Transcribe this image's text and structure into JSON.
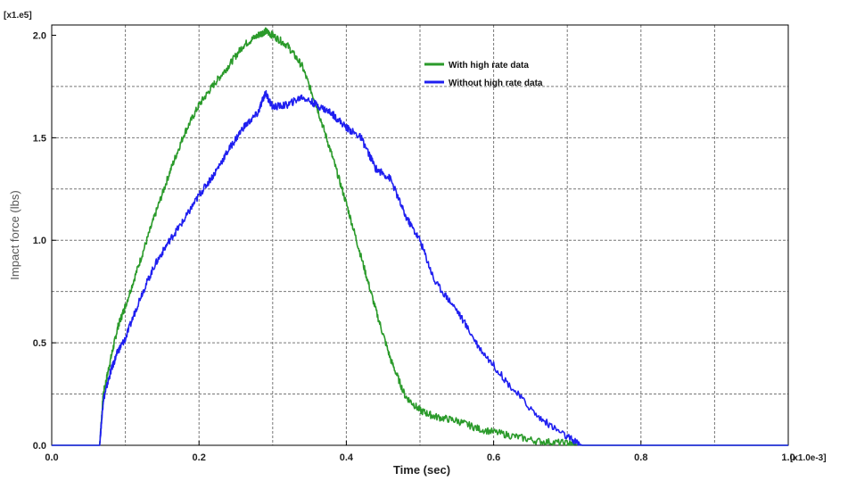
{
  "chart_data": {
    "type": "line",
    "xlabel": "Time (sec)",
    "ylabel": "Impact force (lbs)",
    "x_multiplier": "[x1.0e-3]",
    "y_multiplier": "[x1.e5]",
    "xlim": [
      0.0,
      1.0
    ],
    "ylim": [
      0.0,
      2.05
    ],
    "x_ticks": [
      "0.0",
      "0.2",
      "0.4",
      "0.6",
      "0.8",
      "1.0"
    ],
    "y_ticks": [
      "0.0",
      "0.5",
      "1.0",
      "1.5",
      "2.0"
    ],
    "grid": true,
    "legend_position": "top-right",
    "series": [
      {
        "name": "With high rate data",
        "color": "#2a9a2a",
        "x": [
          0.0,
          0.065,
          0.07,
          0.08,
          0.09,
          0.1,
          0.12,
          0.14,
          0.16,
          0.18,
          0.2,
          0.22,
          0.24,
          0.26,
          0.28,
          0.29,
          0.3,
          0.32,
          0.34,
          0.36,
          0.38,
          0.4,
          0.42,
          0.44,
          0.46,
          0.48,
          0.5,
          0.52,
          0.55,
          0.58,
          0.62,
          0.66,
          0.7,
          0.72,
          0.8,
          0.9,
          1.0
        ],
        "y": [
          0.0,
          0.0,
          0.25,
          0.42,
          0.58,
          0.68,
          0.9,
          1.12,
          1.33,
          1.52,
          1.66,
          1.76,
          1.85,
          1.95,
          2.0,
          2.02,
          2.0,
          1.95,
          1.85,
          1.65,
          1.42,
          1.18,
          0.92,
          0.66,
          0.42,
          0.24,
          0.17,
          0.14,
          0.12,
          0.08,
          0.05,
          0.02,
          0.01,
          0.0,
          0.0,
          0.0,
          0.0
        ]
      },
      {
        "name": "Without high rate data",
        "color": "#1f1ff0",
        "x": [
          0.0,
          0.065,
          0.07,
          0.08,
          0.09,
          0.1,
          0.12,
          0.14,
          0.16,
          0.18,
          0.2,
          0.22,
          0.24,
          0.26,
          0.28,
          0.29,
          0.3,
          0.32,
          0.34,
          0.36,
          0.38,
          0.4,
          0.42,
          0.44,
          0.46,
          0.48,
          0.5,
          0.52,
          0.55,
          0.58,
          0.62,
          0.66,
          0.7,
          0.72,
          0.8,
          0.9,
          1.0
        ],
        "y": [
          0.0,
          0.0,
          0.22,
          0.36,
          0.46,
          0.52,
          0.72,
          0.88,
          1.0,
          1.1,
          1.22,
          1.32,
          1.44,
          1.55,
          1.62,
          1.72,
          1.65,
          1.66,
          1.7,
          1.66,
          1.62,
          1.55,
          1.5,
          1.35,
          1.3,
          1.12,
          1.0,
          0.8,
          0.66,
          0.48,
          0.3,
          0.14,
          0.04,
          0.0,
          0.0,
          0.0,
          0.0
        ]
      }
    ]
  }
}
